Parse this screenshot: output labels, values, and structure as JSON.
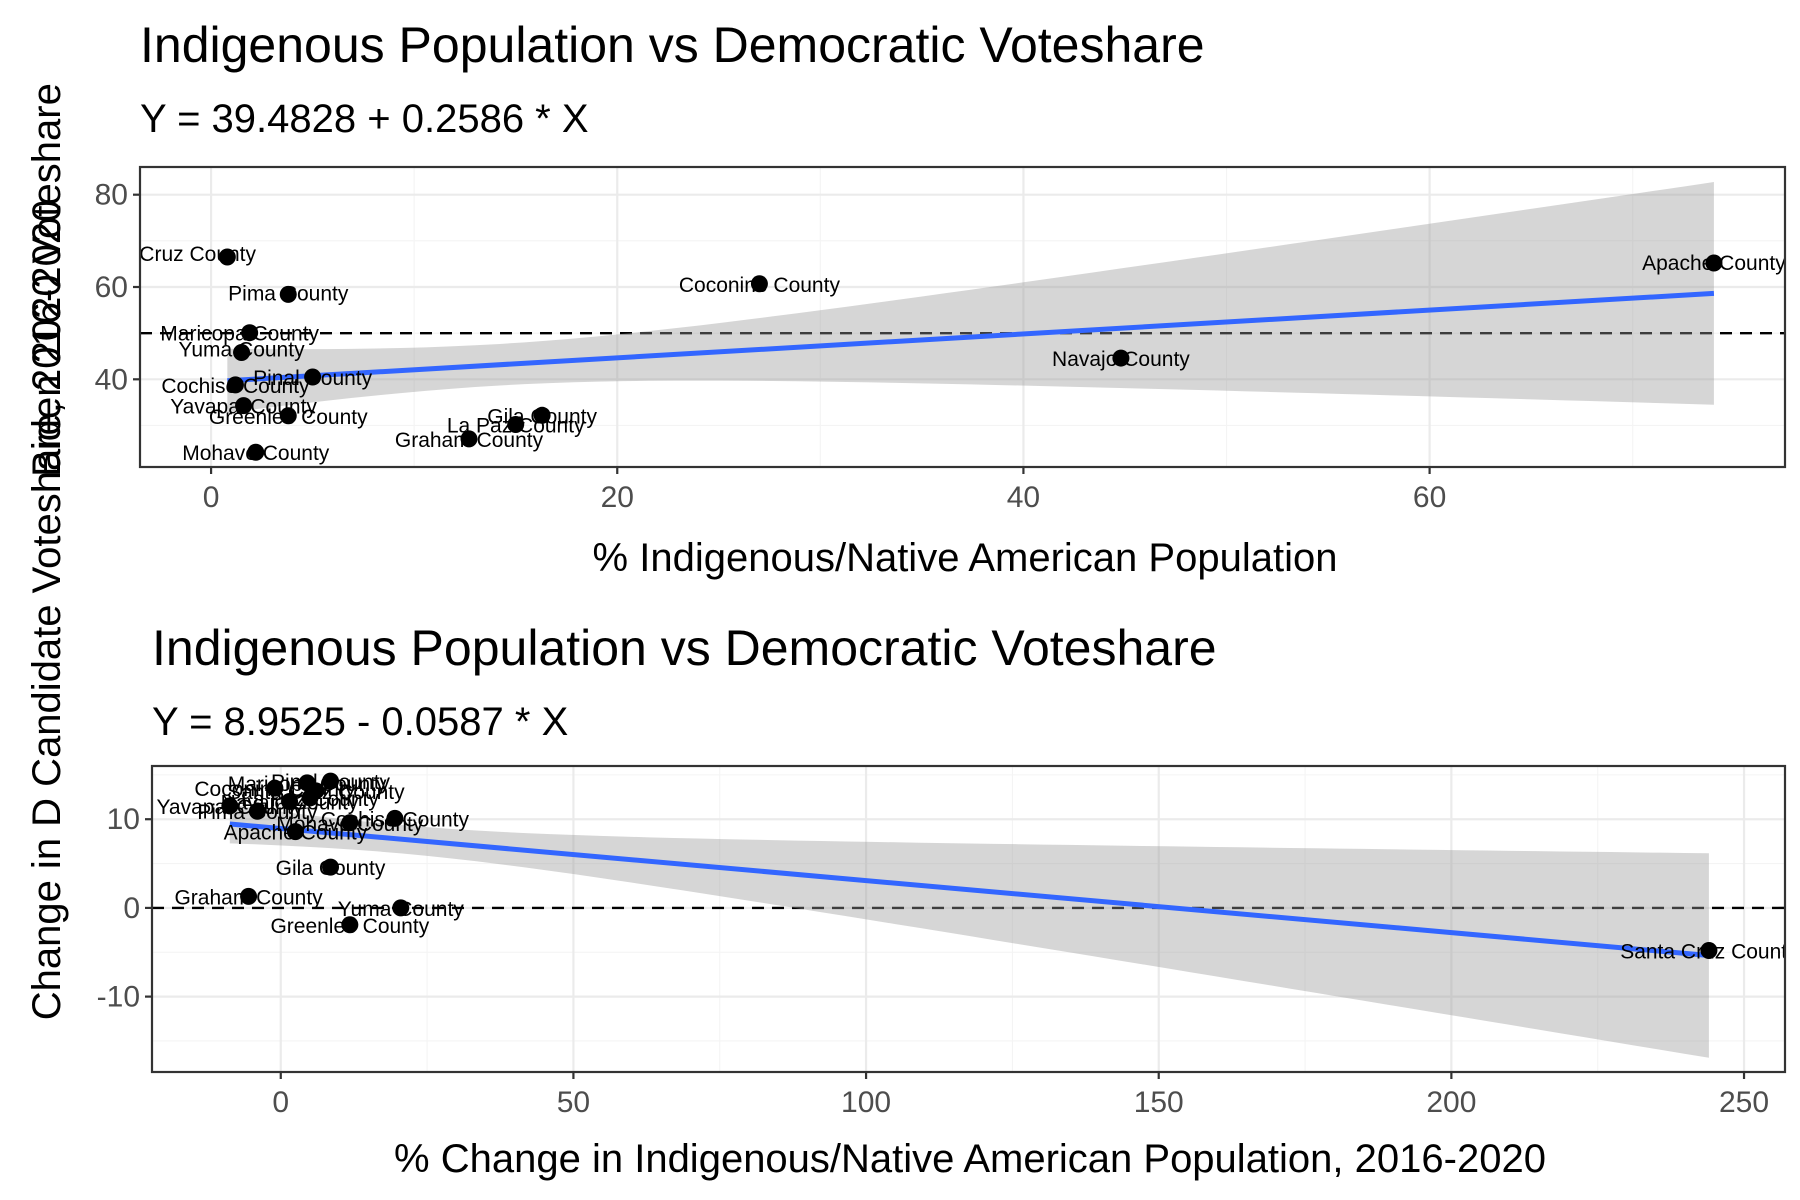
{
  "y_axis_label": "Change in D Candidate Voteshare, 2016-2020",
  "y_axis_label_overlay": "Biden 2020 Voteshare",
  "chart_data": [
    {
      "type": "scatter",
      "title": "Indigenous Population vs Democratic Voteshare",
      "subtitle": "Y = 39.4828 + 0.2586 * X",
      "xlabel": "% Indigenous/Native American Population",
      "ylabel": "Biden 2020 Voteshare",
      "xlim": [
        -3.5,
        77.5
      ],
      "ylim": [
        21,
        86
      ],
      "xticks": [
        0,
        20,
        40,
        60
      ],
      "yticks": [
        40,
        60,
        80
      ],
      "reference_line_y": 50,
      "regression": {
        "intercept": 39.4828,
        "slope": 0.2586,
        "x_range": [
          0.8,
          74.0
        ],
        "ci_lower_end": 34.5,
        "ci_upper_end": 82.5,
        "ci_width_at_mean": 4.5
      },
      "grid": true,
      "points": [
        {
          "label": "Santa Cruz County",
          "x": 0.8,
          "y": 66.5
        },
        {
          "label": "Pima County",
          "x": 3.8,
          "y": 58.4
        },
        {
          "label": "Maricopa County",
          "x": 1.9,
          "y": 50.1
        },
        {
          "label": "Yuma County",
          "x": 1.5,
          "y": 45.8
        },
        {
          "label": "Pinal County",
          "x": 5.0,
          "y": 40.5
        },
        {
          "label": "Cochise County",
          "x": 1.2,
          "y": 38.8
        },
        {
          "label": "Yavapai County",
          "x": 1.6,
          "y": 34.3
        },
        {
          "label": "Greenlee County",
          "x": 3.8,
          "y": 32.1
        },
        {
          "label": "Mohave County",
          "x": 2.2,
          "y": 24.2
        },
        {
          "label": "Graham County",
          "x": 12.7,
          "y": 27.1
        },
        {
          "label": "La Paz County",
          "x": 15.0,
          "y": 30.2
        },
        {
          "label": "Gila County",
          "x": 16.3,
          "y": 32.2
        },
        {
          "label": "Coconino County",
          "x": 27.0,
          "y": 60.7
        },
        {
          "label": "Navajo County",
          "x": 44.8,
          "y": 44.6
        },
        {
          "label": "Apache County",
          "x": 74.0,
          "y": 65.2
        }
      ]
    },
    {
      "type": "scatter",
      "title": "Indigenous Population vs Democratic Voteshare",
      "subtitle": "Y = 8.9525 - 0.0587 * X",
      "xlabel": "% Change in Indigenous/Native American Population, 2016-2020",
      "ylabel": "Change in D Candidate Voteshare, 2016-2020",
      "xlim": [
        -22,
        257
      ],
      "ylim": [
        -18.5,
        16
      ],
      "xticks": [
        0,
        50,
        100,
        150,
        200,
        250
      ],
      "yticks": [
        -10,
        0,
        10
      ],
      "reference_line_y": 0,
      "regression": {
        "intercept": 8.9525,
        "slope": -0.0587,
        "x_range": [
          -8.7,
          244.0
        ],
        "ci_lower_end": -16.9,
        "ci_upper_end": 6.0,
        "ci_width_at_mean": 1.6
      },
      "grid": true,
      "points": [
        {
          "label": "Maricopa County",
          "x": 4.5,
          "y": 14.1
        },
        {
          "label": "Pinal County",
          "x": 8.5,
          "y": 14.3
        },
        {
          "label": "Santa Cruz County",
          "x": 6.0,
          "y": 13.2
        },
        {
          "label": "Navajo County",
          "x": 1.5,
          "y": 12.0
        },
        {
          "label": "Coconino County",
          "x": -1.0,
          "y": 13.5
        },
        {
          "label": "La Paz County",
          "x": 5.0,
          "y": 12.4
        },
        {
          "label": "Yavapai County",
          "x": -8.7,
          "y": 11.5
        },
        {
          "label": "Pima County",
          "x": -4.0,
          "y": 10.9
        },
        {
          "label": "Mohave County",
          "x": 11.8,
          "y": 9.6
        },
        {
          "label": "Cochise County",
          "x": 19.5,
          "y": 10.1
        },
        {
          "label": "Apache County",
          "x": 2.5,
          "y": 8.6
        },
        {
          "label": "Gila County",
          "x": 8.5,
          "y": 4.6
        },
        {
          "label": "Graham County",
          "x": -5.5,
          "y": 1.3
        },
        {
          "label": "Yuma County",
          "x": 20.5,
          "y": 0.0
        },
        {
          "label": "Greenlee County",
          "x": 11.8,
          "y": -1.9
        },
        {
          "label": "Santa Cruz County",
          "x": 244.0,
          "y": -4.8
        }
      ]
    }
  ]
}
